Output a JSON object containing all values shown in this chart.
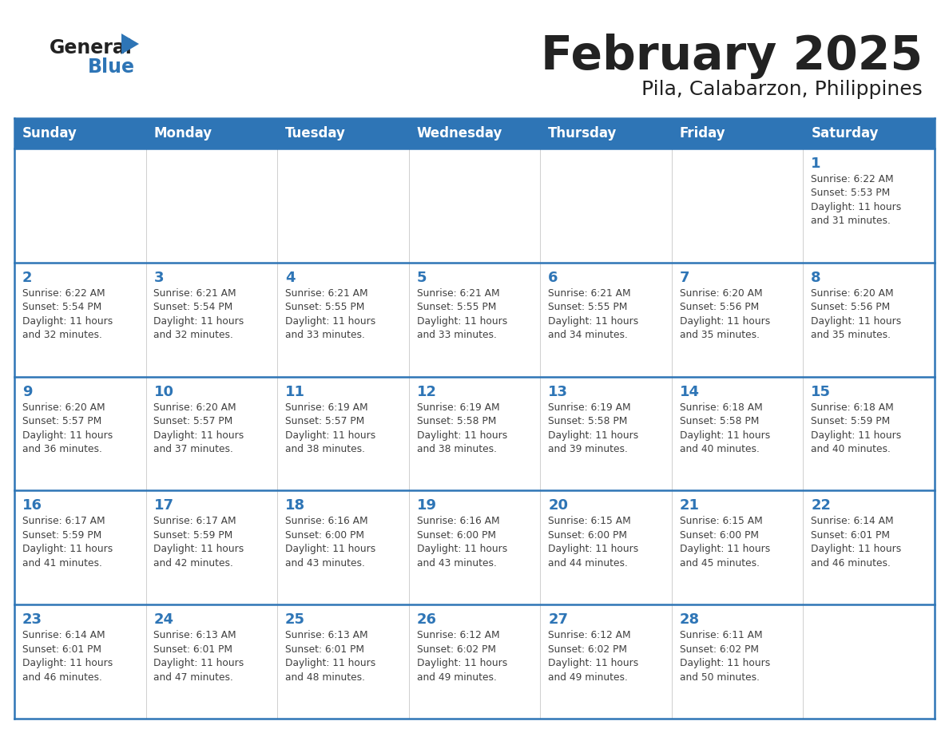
{
  "title": "February 2025",
  "subtitle": "Pila, Calabarzon, Philippines",
  "header_color": "#2E75B6",
  "header_text_color": "#FFFFFF",
  "day_number_color": "#2E75B6",
  "text_color": "#404040",
  "days_of_week": [
    "Sunday",
    "Monday",
    "Tuesday",
    "Wednesday",
    "Thursday",
    "Friday",
    "Saturday"
  ],
  "logo_general_color": "#222222",
  "logo_blue_color": "#2E75B6",
  "logo_triangle_color": "#2E75B6",
  "title_color": "#222222",
  "subtitle_color": "#222222",
  "line_color": "#2E75B6",
  "cell_border_color": "#BBBBBB",
  "weeks": [
    [
      {
        "day": null,
        "info": null
      },
      {
        "day": null,
        "info": null
      },
      {
        "day": null,
        "info": null
      },
      {
        "day": null,
        "info": null
      },
      {
        "day": null,
        "info": null
      },
      {
        "day": null,
        "info": null
      },
      {
        "day": 1,
        "info": "Sunrise: 6:22 AM\nSunset: 5:53 PM\nDaylight: 11 hours\nand 31 minutes."
      }
    ],
    [
      {
        "day": 2,
        "info": "Sunrise: 6:22 AM\nSunset: 5:54 PM\nDaylight: 11 hours\nand 32 minutes."
      },
      {
        "day": 3,
        "info": "Sunrise: 6:21 AM\nSunset: 5:54 PM\nDaylight: 11 hours\nand 32 minutes."
      },
      {
        "day": 4,
        "info": "Sunrise: 6:21 AM\nSunset: 5:55 PM\nDaylight: 11 hours\nand 33 minutes."
      },
      {
        "day": 5,
        "info": "Sunrise: 6:21 AM\nSunset: 5:55 PM\nDaylight: 11 hours\nand 33 minutes."
      },
      {
        "day": 6,
        "info": "Sunrise: 6:21 AM\nSunset: 5:55 PM\nDaylight: 11 hours\nand 34 minutes."
      },
      {
        "day": 7,
        "info": "Sunrise: 6:20 AM\nSunset: 5:56 PM\nDaylight: 11 hours\nand 35 minutes."
      },
      {
        "day": 8,
        "info": "Sunrise: 6:20 AM\nSunset: 5:56 PM\nDaylight: 11 hours\nand 35 minutes."
      }
    ],
    [
      {
        "day": 9,
        "info": "Sunrise: 6:20 AM\nSunset: 5:57 PM\nDaylight: 11 hours\nand 36 minutes."
      },
      {
        "day": 10,
        "info": "Sunrise: 6:20 AM\nSunset: 5:57 PM\nDaylight: 11 hours\nand 37 minutes."
      },
      {
        "day": 11,
        "info": "Sunrise: 6:19 AM\nSunset: 5:57 PM\nDaylight: 11 hours\nand 38 minutes."
      },
      {
        "day": 12,
        "info": "Sunrise: 6:19 AM\nSunset: 5:58 PM\nDaylight: 11 hours\nand 38 minutes."
      },
      {
        "day": 13,
        "info": "Sunrise: 6:19 AM\nSunset: 5:58 PM\nDaylight: 11 hours\nand 39 minutes."
      },
      {
        "day": 14,
        "info": "Sunrise: 6:18 AM\nSunset: 5:58 PM\nDaylight: 11 hours\nand 40 minutes."
      },
      {
        "day": 15,
        "info": "Sunrise: 6:18 AM\nSunset: 5:59 PM\nDaylight: 11 hours\nand 40 minutes."
      }
    ],
    [
      {
        "day": 16,
        "info": "Sunrise: 6:17 AM\nSunset: 5:59 PM\nDaylight: 11 hours\nand 41 minutes."
      },
      {
        "day": 17,
        "info": "Sunrise: 6:17 AM\nSunset: 5:59 PM\nDaylight: 11 hours\nand 42 minutes."
      },
      {
        "day": 18,
        "info": "Sunrise: 6:16 AM\nSunset: 6:00 PM\nDaylight: 11 hours\nand 43 minutes."
      },
      {
        "day": 19,
        "info": "Sunrise: 6:16 AM\nSunset: 6:00 PM\nDaylight: 11 hours\nand 43 minutes."
      },
      {
        "day": 20,
        "info": "Sunrise: 6:15 AM\nSunset: 6:00 PM\nDaylight: 11 hours\nand 44 minutes."
      },
      {
        "day": 21,
        "info": "Sunrise: 6:15 AM\nSunset: 6:00 PM\nDaylight: 11 hours\nand 45 minutes."
      },
      {
        "day": 22,
        "info": "Sunrise: 6:14 AM\nSunset: 6:01 PM\nDaylight: 11 hours\nand 46 minutes."
      }
    ],
    [
      {
        "day": 23,
        "info": "Sunrise: 6:14 AM\nSunset: 6:01 PM\nDaylight: 11 hours\nand 46 minutes."
      },
      {
        "day": 24,
        "info": "Sunrise: 6:13 AM\nSunset: 6:01 PM\nDaylight: 11 hours\nand 47 minutes."
      },
      {
        "day": 25,
        "info": "Sunrise: 6:13 AM\nSunset: 6:01 PM\nDaylight: 11 hours\nand 48 minutes."
      },
      {
        "day": 26,
        "info": "Sunrise: 6:12 AM\nSunset: 6:02 PM\nDaylight: 11 hours\nand 49 minutes."
      },
      {
        "day": 27,
        "info": "Sunrise: 6:12 AM\nSunset: 6:02 PM\nDaylight: 11 hours\nand 49 minutes."
      },
      {
        "day": 28,
        "info": "Sunrise: 6:11 AM\nSunset: 6:02 PM\nDaylight: 11 hours\nand 50 minutes."
      },
      {
        "day": null,
        "info": null
      }
    ]
  ]
}
